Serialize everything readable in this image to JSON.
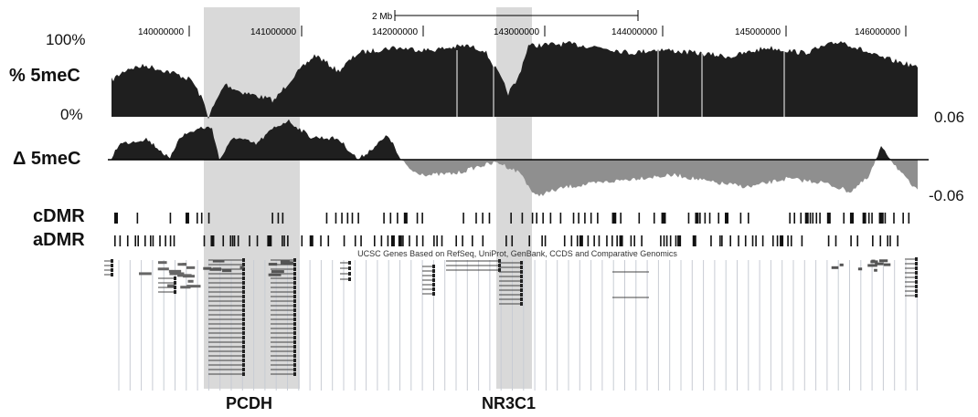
{
  "scale_bar": {
    "label": "2 Mb"
  },
  "coordinates": [
    "140000000",
    "141000000",
    "142000000",
    "143000000",
    "144000000",
    "145000000",
    "146000000"
  ],
  "tracks": {
    "methylation": {
      "label": "% 5meC",
      "top_label": "100%",
      "bottom_label": "0%"
    },
    "delta": {
      "label": "Δ 5meC",
      "max_label": "0.06",
      "min_label": "-0.06"
    },
    "cdmr": {
      "label": "cDMR"
    },
    "admr": {
      "label": "aDMR"
    },
    "genes": {
      "title": "UCSC Genes Based on RefSeq, UniProt, GenBank, CCDS and Comparative Genomics"
    }
  },
  "highlights": [
    {
      "gene": "PCDH"
    },
    {
      "gene": "NR3C1"
    }
  ],
  "colors": {
    "signal": "#1f1f1f",
    "negative": "#8f8f8f",
    "highlight": "#d9d9d9",
    "grid": "#c8ccd4"
  }
}
